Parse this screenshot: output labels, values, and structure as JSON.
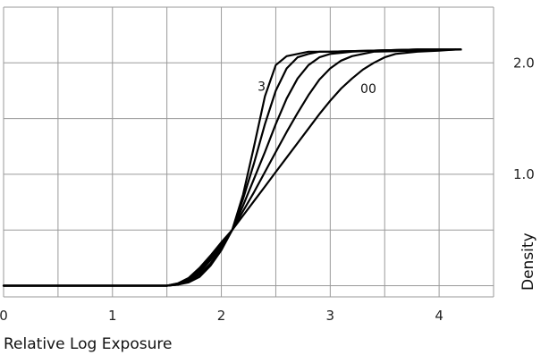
{
  "chart_data": {
    "type": "line",
    "xlabel": "Relative Log Exposure",
    "ylabel": "Density",
    "xlim": [
      0,
      4.5
    ],
    "ylim": [
      -0.1,
      2.5
    ],
    "grid": true,
    "x_ticks": [
      {
        "value": 0,
        "label": "0"
      },
      {
        "value": 1,
        "label": "1"
      },
      {
        "value": 2,
        "label": "2"
      },
      {
        "value": 3,
        "label": "3"
      },
      {
        "value": 4,
        "label": "4"
      }
    ],
    "y_ticks": [
      {
        "value": 1.0,
        "label": "1.0"
      },
      {
        "value": 2.0,
        "label": "2.0"
      }
    ],
    "y_axis_side": "right",
    "annotations": [
      {
        "text": "3",
        "x": 2.37,
        "y": 1.75
      },
      {
        "text": "00",
        "x": 3.35,
        "y": 1.73
      }
    ],
    "line_color": "#000000",
    "series": [
      {
        "x": [
          0,
          1.5,
          1.6,
          1.7,
          1.8,
          1.9,
          2.0,
          2.1,
          2.2,
          2.3,
          2.4,
          2.5,
          2.6,
          2.7,
          2.8,
          3.0,
          3.4,
          3.8,
          4.2
        ],
        "y": [
          0,
          0,
          0.01,
          0.03,
          0.08,
          0.18,
          0.32,
          0.5,
          0.82,
          1.25,
          1.7,
          1.98,
          2.06,
          2.08,
          2.1,
          2.1,
          2.11,
          2.12,
          2.12
        ]
      },
      {
        "x": [
          0,
          1.5,
          1.6,
          1.7,
          1.8,
          1.9,
          2.0,
          2.1,
          2.2,
          2.3,
          2.4,
          2.5,
          2.6,
          2.7,
          2.8,
          2.9,
          3.0,
          3.4,
          3.8,
          4.2
        ],
        "y": [
          0,
          0,
          0.01,
          0.04,
          0.1,
          0.2,
          0.34,
          0.5,
          0.78,
          1.1,
          1.45,
          1.75,
          1.95,
          2.05,
          2.08,
          2.1,
          2.1,
          2.11,
          2.12,
          2.12
        ]
      },
      {
        "x": [
          0,
          1.5,
          1.6,
          1.7,
          1.8,
          1.9,
          2.0,
          2.1,
          2.2,
          2.3,
          2.4,
          2.5,
          2.6,
          2.7,
          2.8,
          2.9,
          3.0,
          3.2,
          3.4,
          3.8,
          4.2
        ],
        "y": [
          0,
          0,
          0.01,
          0.05,
          0.12,
          0.23,
          0.36,
          0.5,
          0.72,
          0.96,
          1.2,
          1.45,
          1.68,
          1.86,
          1.98,
          2.05,
          2.08,
          2.1,
          2.11,
          2.12,
          2.12
        ]
      },
      {
        "x": [
          0,
          1.5,
          1.6,
          1.7,
          1.8,
          1.9,
          2.0,
          2.1,
          2.2,
          2.3,
          2.4,
          2.5,
          2.6,
          2.7,
          2.8,
          2.9,
          3.0,
          3.1,
          3.2,
          3.4,
          3.8,
          4.2
        ],
        "y": [
          0,
          0,
          0.02,
          0.06,
          0.14,
          0.25,
          0.38,
          0.5,
          0.67,
          0.84,
          1.02,
          1.2,
          1.38,
          1.55,
          1.71,
          1.85,
          1.95,
          2.02,
          2.06,
          2.1,
          2.11,
          2.12
        ]
      },
      {
        "x": [
          0,
          1.5,
          1.6,
          1.7,
          1.8,
          1.9,
          2.0,
          2.1,
          2.2,
          2.3,
          2.4,
          2.5,
          2.6,
          2.7,
          2.8,
          2.9,
          3.0,
          3.1,
          3.2,
          3.3,
          3.4,
          3.5,
          3.6,
          3.8,
          4.0,
          4.15
        ],
        "y": [
          0,
          0,
          0.02,
          0.07,
          0.16,
          0.27,
          0.39,
          0.5,
          0.63,
          0.76,
          0.89,
          1.02,
          1.15,
          1.28,
          1.41,
          1.54,
          1.66,
          1.77,
          1.86,
          1.94,
          2.0,
          2.05,
          2.08,
          2.1,
          2.11,
          2.12
        ]
      }
    ]
  }
}
